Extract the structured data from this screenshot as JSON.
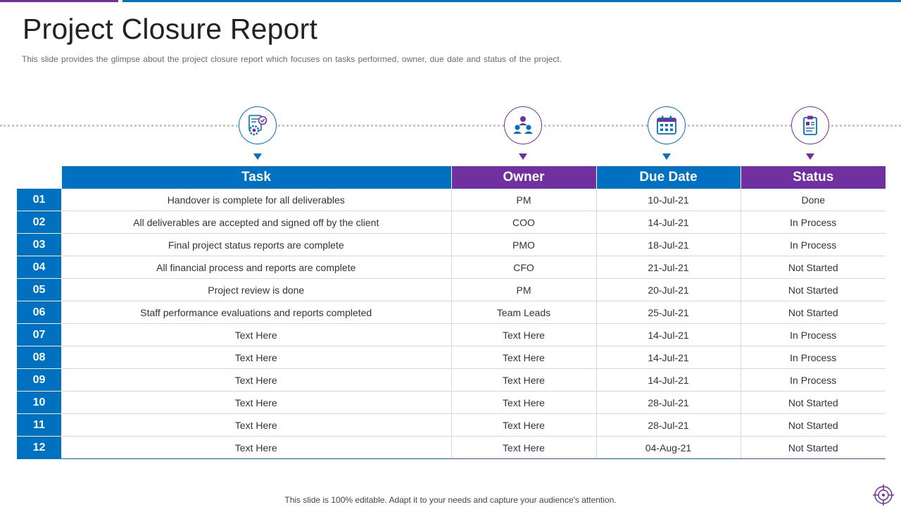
{
  "header": {
    "title": "Project Closure Report",
    "subtitle": "This slide provides  the glimpse about the project closure report which focuses on tasks performed,  owner,  due date and status of the project."
  },
  "icons": [
    {
      "name": "task-gear-icon",
      "color": "#0070c0"
    },
    {
      "name": "team-people-icon",
      "color": "#7030a0"
    },
    {
      "name": "calendar-icon",
      "color": "#0070c0"
    },
    {
      "name": "clipboard-icon",
      "color": "#7030a0"
    }
  ],
  "colors": {
    "blue": "#0070c0",
    "purple": "#7030a0"
  },
  "table": {
    "headers": [
      "Task",
      "Owner",
      "Due Date",
      "Status"
    ],
    "rows": [
      {
        "num": "01",
        "task": "Handover is complete for all deliverables",
        "owner": "PM",
        "due": "10-Jul-21",
        "status": "Done"
      },
      {
        "num": "02",
        "task": "All deliverables are accepted and signed off by the client",
        "owner": "COO",
        "due": "14-Jul-21",
        "status": "In Process"
      },
      {
        "num": "03",
        "task": "Final project status reports are complete",
        "owner": "PMO",
        "due": "18-Jul-21",
        "status": "In Process"
      },
      {
        "num": "04",
        "task": "All financial process and reports are complete",
        "owner": "CFO",
        "due": "21-Jul-21",
        "status": "Not Started"
      },
      {
        "num": "05",
        "task": "Project review is done",
        "owner": "PM",
        "due": "20-Jul-21",
        "status": "Not Started"
      },
      {
        "num": "06",
        "task": "Staff performance evaluations and reports completed",
        "owner": "Team Leads",
        "due": "25-Jul-21",
        "status": "Not Started"
      },
      {
        "num": "07",
        "task": "Text Here",
        "owner": "Text Here",
        "due": "14-Jul-21",
        "status": "In Process"
      },
      {
        "num": "08",
        "task": "Text Here",
        "owner": "Text Here",
        "due": "14-Jul-21",
        "status": "In Process"
      },
      {
        "num": "09",
        "task": "Text Here",
        "owner": "Text Here",
        "due": "14-Jul-21",
        "status": "In Process"
      },
      {
        "num": "10",
        "task": "Text Here",
        "owner": "Text Here",
        "due": "28-Jul-21",
        "status": "Not Started"
      },
      {
        "num": "11",
        "task": "Text Here",
        "owner": "Text Here",
        "due": "28-Jul-21",
        "status": "Not Started"
      },
      {
        "num": "12",
        "task": "Text Here",
        "owner": "Text Here",
        "due": "04-Aug-21",
        "status": "Not Started"
      }
    ]
  },
  "footer": {
    "text": "This slide is 100% editable. Adapt it to your needs and capture your audience's attention."
  }
}
